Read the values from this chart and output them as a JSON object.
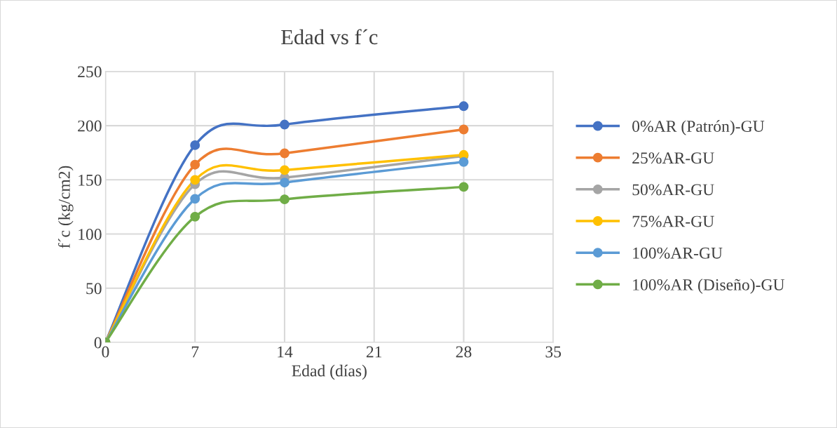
{
  "chart_data": {
    "type": "line",
    "title": "Edad vs f´c",
    "xlabel": "Edad (días)",
    "ylabel": "f´c (kg/cm2)",
    "x": [
      0,
      7,
      14,
      28
    ],
    "series": [
      {
        "name": "0%AR (Patrón)-GU",
        "color": "#4472c4",
        "values": [
          0,
          182,
          201,
          218
        ]
      },
      {
        "name": "25%AR-GU",
        "color": "#ed7d31",
        "values": [
          0,
          164,
          174.5,
          196.5
        ]
      },
      {
        "name": "50%AR-GU",
        "color": "#a5a5a5",
        "values": [
          0,
          146,
          152,
          172
        ]
      },
      {
        "name": "75%AR-GU",
        "color": "#ffc000",
        "values": [
          0,
          150,
          159,
          173
        ]
      },
      {
        "name": "100%AR-GU",
        "color": "#5b9bd5",
        "values": [
          0,
          132.5,
          147.5,
          166.5
        ]
      },
      {
        "name": "100%AR (Diseño)-GU",
        "color": "#70ad47",
        "values": [
          0,
          116,
          132,
          143.5
        ]
      }
    ],
    "xlim": [
      0,
      35
    ],
    "xticks": [
      0,
      7,
      14,
      21,
      28,
      35
    ],
    "ylim": [
      0,
      250
    ],
    "yticks": [
      0,
      50,
      100,
      150,
      200,
      250
    ],
    "grid": true,
    "legend": "right",
    "marker": "circle",
    "line_style": "solid"
  }
}
